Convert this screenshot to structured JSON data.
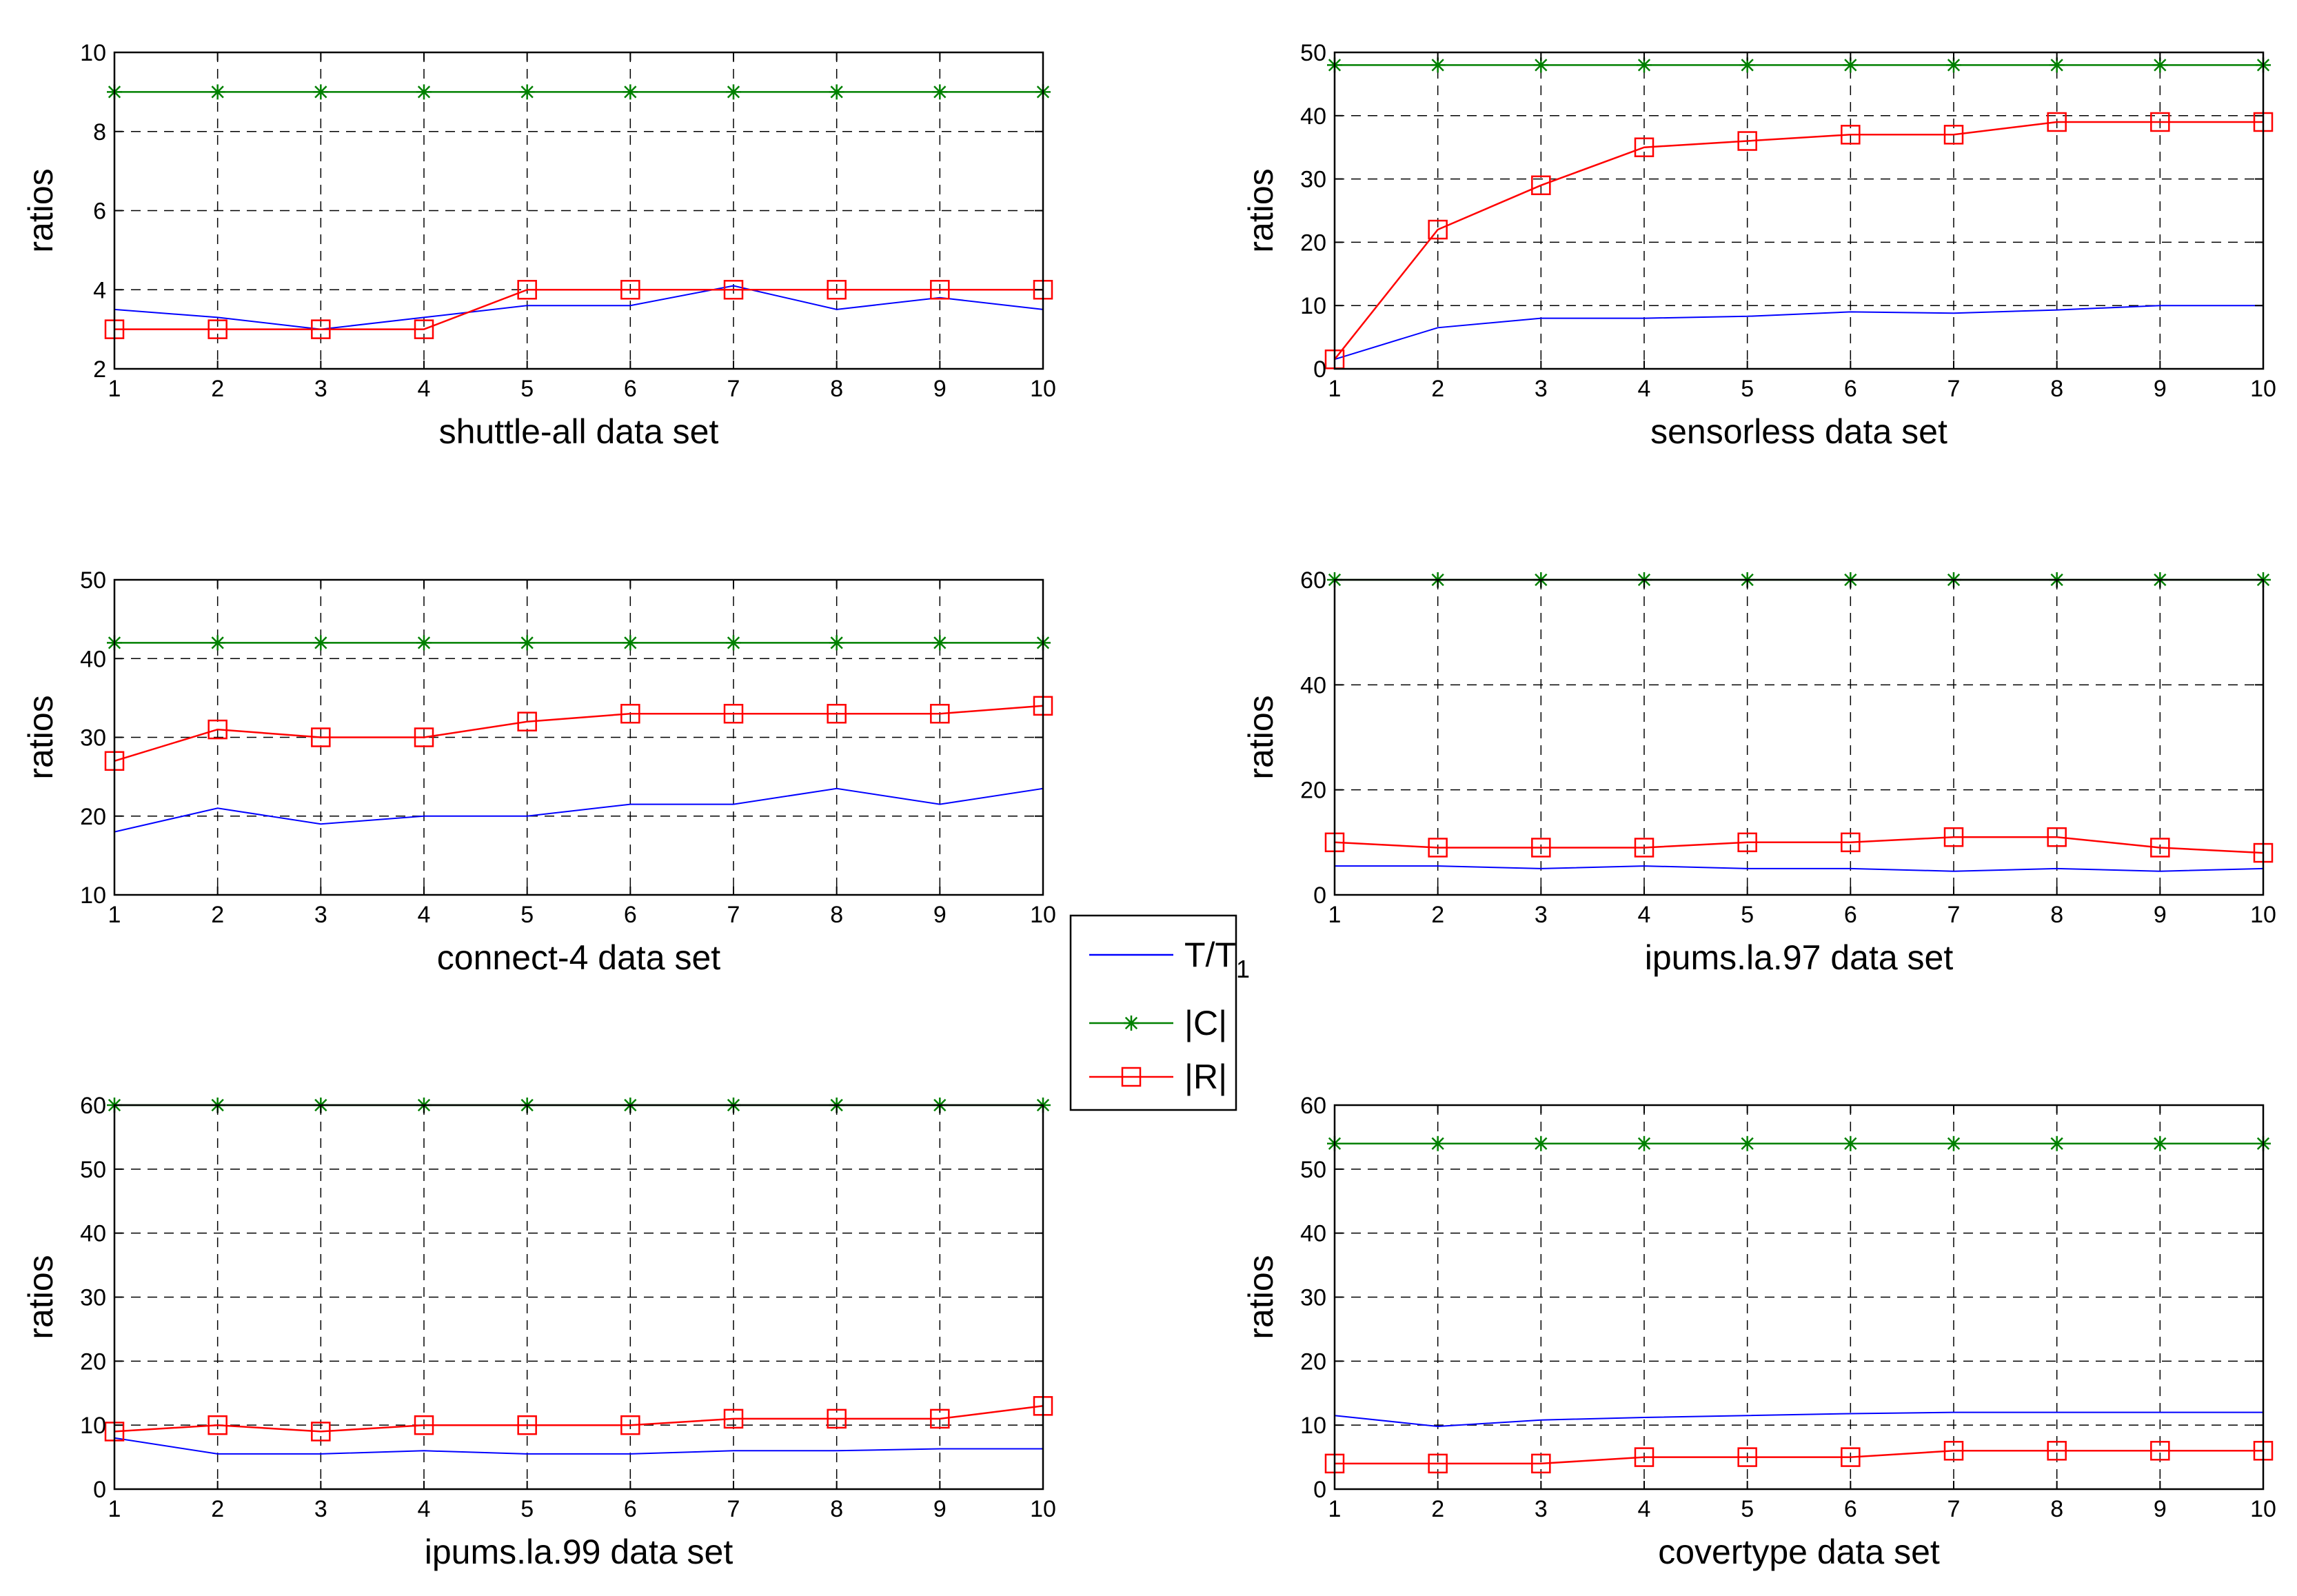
{
  "legend": [
    {
      "key": "t",
      "label": "T/T",
      "subscript": "1",
      "color": "#0000ff",
      "marker": "none"
    },
    {
      "key": "c",
      "label": "|C|",
      "color": "#008000",
      "marker": "star"
    },
    {
      "key": "r",
      "label": "|R|",
      "color": "#ff0000",
      "marker": "square"
    }
  ],
  "chart_data": [
    {
      "type": "line",
      "title": "",
      "xlabel": "shuttle-all data set",
      "ylabel": "ratios",
      "x": [
        1,
        2,
        3,
        4,
        5,
        6,
        7,
        8,
        9,
        10
      ],
      "xlim": [
        1,
        10
      ],
      "ylim": [
        2,
        10
      ],
      "yticks": [
        2,
        4,
        6,
        8,
        10
      ],
      "grid": true,
      "series": [
        {
          "name": "T/T1",
          "values": [
            3.5,
            3.3,
            3.0,
            3.3,
            3.6,
            3.6,
            4.1,
            3.5,
            3.8,
            3.5
          ]
        },
        {
          "name": "|C|",
          "values": [
            9,
            9,
            9,
            9,
            9,
            9,
            9,
            9,
            9,
            9
          ]
        },
        {
          "name": "|R|",
          "values": [
            3,
            3,
            3,
            3,
            4,
            4,
            4,
            4,
            4,
            4
          ]
        }
      ]
    },
    {
      "type": "line",
      "title": "",
      "xlabel": "sensorless data set",
      "ylabel": "ratios",
      "x": [
        1,
        2,
        3,
        4,
        5,
        6,
        7,
        8,
        9,
        10
      ],
      "xlim": [
        1,
        10
      ],
      "ylim": [
        0,
        50
      ],
      "yticks": [
        0,
        10,
        20,
        30,
        40,
        50
      ],
      "grid": true,
      "series": [
        {
          "name": "T/T1",
          "values": [
            1.5,
            6.5,
            8,
            8,
            8.3,
            9,
            8.8,
            9.3,
            10,
            10
          ]
        },
        {
          "name": "|C|",
          "values": [
            48,
            48,
            48,
            48,
            48,
            48,
            48,
            48,
            48,
            48
          ]
        },
        {
          "name": "|R|",
          "values": [
            1.5,
            22,
            29,
            35,
            36,
            37,
            37,
            39,
            39,
            39
          ]
        }
      ]
    },
    {
      "type": "line",
      "title": "",
      "xlabel": "connect-4 data set",
      "ylabel": "ratios",
      "x": [
        1,
        2,
        3,
        4,
        5,
        6,
        7,
        8,
        9,
        10
      ],
      "xlim": [
        1,
        10
      ],
      "ylim": [
        10,
        50
      ],
      "yticks": [
        10,
        20,
        30,
        40,
        50
      ],
      "grid": true,
      "series": [
        {
          "name": "T/T1",
          "values": [
            18,
            21,
            19,
            20,
            20,
            21.5,
            21.5,
            23.5,
            21.5,
            23.5
          ]
        },
        {
          "name": "|C|",
          "values": [
            42,
            42,
            42,
            42,
            42,
            42,
            42,
            42,
            42,
            42
          ]
        },
        {
          "name": "|R|",
          "values": [
            27,
            31,
            30,
            30,
            32,
            33,
            33,
            33,
            33,
            34
          ]
        }
      ]
    },
    {
      "type": "line",
      "title": "",
      "xlabel": "ipums.la.97 data set",
      "ylabel": "ratios",
      "x": [
        1,
        2,
        3,
        4,
        5,
        6,
        7,
        8,
        9,
        10
      ],
      "xlim": [
        1,
        10
      ],
      "ylim": [
        0,
        60
      ],
      "yticks": [
        0,
        20,
        40,
        60
      ],
      "grid": true,
      "series": [
        {
          "name": "T/T1",
          "values": [
            5.5,
            5.5,
            5,
            5.5,
            5,
            5,
            4.5,
            5,
            4.5,
            5
          ]
        },
        {
          "name": "|C|",
          "values": [
            60,
            60,
            60,
            60,
            60,
            60,
            60,
            60,
            60,
            60
          ]
        },
        {
          "name": "|R|",
          "values": [
            10,
            9,
            9,
            9,
            10,
            10,
            11,
            11,
            9,
            8
          ]
        }
      ]
    },
    {
      "type": "line",
      "title": "",
      "xlabel": "ipums.la.99 data set",
      "ylabel": "ratios",
      "x": [
        1,
        2,
        3,
        4,
        5,
        6,
        7,
        8,
        9,
        10
      ],
      "xlim": [
        1,
        10
      ],
      "ylim": [
        0,
        60
      ],
      "yticks": [
        0,
        10,
        20,
        30,
        40,
        50,
        60
      ],
      "grid": true,
      "series": [
        {
          "name": "T/T1",
          "values": [
            8,
            5.5,
            5.5,
            6,
            5.5,
            5.5,
            6,
            6,
            6.3,
            6.3
          ]
        },
        {
          "name": "|C|",
          "values": [
            60,
            60,
            60,
            60,
            60,
            60,
            60,
            60,
            60,
            60
          ]
        },
        {
          "name": "|R|",
          "values": [
            9,
            10,
            9,
            10,
            10,
            10,
            11,
            11,
            11,
            13
          ]
        }
      ]
    },
    {
      "type": "line",
      "title": "",
      "xlabel": "covertype data set",
      "ylabel": "ratios",
      "x": [
        1,
        2,
        3,
        4,
        5,
        6,
        7,
        8,
        9,
        10
      ],
      "xlim": [
        1,
        10
      ],
      "ylim": [
        0,
        60
      ],
      "yticks": [
        0,
        10,
        20,
        30,
        40,
        50,
        60
      ],
      "grid": true,
      "series": [
        {
          "name": "T/T1",
          "values": [
            11.5,
            9.8,
            10.8,
            11.2,
            11.5,
            11.8,
            12,
            12,
            12,
            12
          ]
        },
        {
          "name": "|C|",
          "values": [
            54,
            54,
            54,
            54,
            54,
            54,
            54,
            54,
            54,
            54
          ]
        },
        {
          "name": "|R|",
          "values": [
            4,
            4,
            4,
            5,
            5,
            5,
            6,
            6,
            6,
            6
          ]
        }
      ]
    }
  ]
}
